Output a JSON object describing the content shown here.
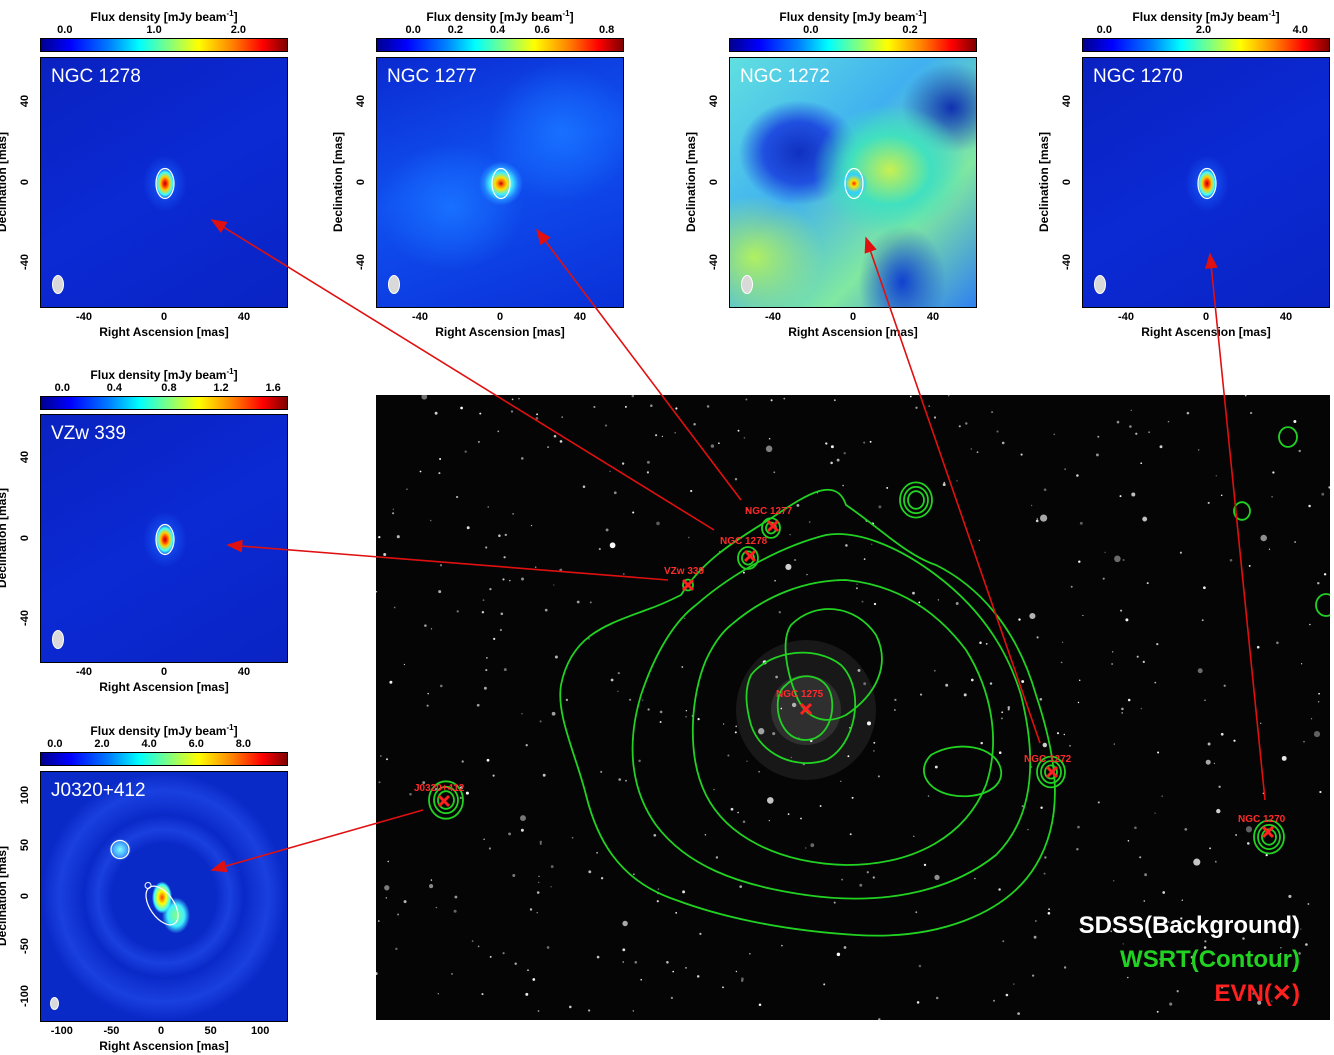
{
  "colorbar_title": "Flux density [mJy beam",
  "colorbar_title_sup": "-1",
  "colorbar_title_end": "]",
  "x_axis_label": "Right Ascension [mas]",
  "y_axis_label": "Declination [mas]",
  "colors": {
    "contour": "#22d222",
    "marker": "#ff2020",
    "arrow": "#e01010",
    "sky_bg": "#050505"
  },
  "panels": [
    {
      "id": "ngc1278",
      "name": "NGC 1278",
      "cbar_ticks": [
        "0.0",
        "1.0",
        "2.0"
      ],
      "x_ticks": [
        "-40",
        "0",
        "40"
      ],
      "y_ticks": [
        "40",
        "0",
        "-40"
      ]
    },
    {
      "id": "ngc1277",
      "name": "NGC 1277",
      "cbar_ticks": [
        "0.0",
        "0.2",
        "0.4",
        "0.6",
        "0.8"
      ],
      "x_ticks": [
        "-40",
        "0",
        "40"
      ],
      "y_ticks": [
        "40",
        "0",
        "-40"
      ]
    },
    {
      "id": "ngc1272",
      "name": "NGC 1272",
      "cbar_ticks": [
        "0.0",
        "0.2"
      ],
      "x_ticks": [
        "-40",
        "0",
        "40"
      ],
      "y_ticks": [
        "40",
        "0",
        "-40"
      ]
    },
    {
      "id": "ngc1270",
      "name": "NGC 1270",
      "cbar_ticks": [
        "0.0",
        "2.0",
        "4.0"
      ],
      "x_ticks": [
        "-40",
        "0",
        "40"
      ],
      "y_ticks": [
        "40",
        "0",
        "-40"
      ]
    },
    {
      "id": "vzw339",
      "name": "VZw 339",
      "cbar_ticks": [
        "0.0",
        "0.4",
        "0.8",
        "1.2",
        "1.6"
      ],
      "x_ticks": [
        "-40",
        "0",
        "40"
      ],
      "y_ticks": [
        "40",
        "0",
        "-40"
      ]
    },
    {
      "id": "j0320",
      "name": "J0320+412",
      "cbar_ticks": [
        "0.0",
        "2.0",
        "4.0",
        "6.0",
        "8.0"
      ],
      "x_ticks": [
        "-100",
        "-50",
        "0",
        "50",
        "100"
      ],
      "y_ticks": [
        "100",
        "50",
        "0",
        "-50",
        "-100"
      ]
    }
  ],
  "sky_sources": [
    "NGC 1277",
    "NGC 1278",
    "VZw 339",
    "NGC 1275",
    "NGC 1272",
    "J0320+412",
    "NGC 1270"
  ],
  "legend": {
    "line1": "SDSS(Background)",
    "line2": "WSRT(Contour)",
    "line3": "EVN(✕)"
  }
}
